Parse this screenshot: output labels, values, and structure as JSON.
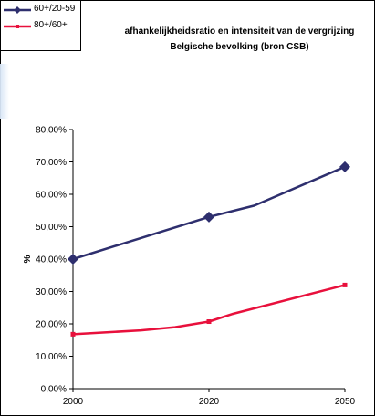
{
  "chart_data": {
    "type": "line",
    "title_lines": [
      "afhankelijkheidsratio en intensiteit van de vergrijzing",
      "Belgische bevolking (bron CSB)"
    ],
    "xlabel": "",
    "ylabel": "%",
    "x_tick_labels": [
      "2000",
      "2020",
      "2050"
    ],
    "y_tick_labels": [
      "0,00%",
      "10,00%",
      "20,00%",
      "30,00%",
      "40,00%",
      "50,00%",
      "60,00%",
      "70,00%",
      "80,00%"
    ],
    "ylim": [
      0,
      0.8
    ],
    "grid": false,
    "legend_position": "top-left",
    "series": [
      {
        "name": "60+/20-59",
        "color": "#2e2f6e",
        "marker": "diamond",
        "x": [
          2000,
          2010,
          2020,
          2030,
          2050
        ],
        "values": [
          0.4,
          0.465,
          0.53,
          0.565,
          0.685
        ],
        "marker_x": [
          2000,
          2020,
          2050
        ]
      },
      {
        "name": "80+/60+",
        "color": "#e8103c",
        "marker": "square",
        "x": [
          2000,
          2010,
          2015,
          2020,
          2025,
          2050
        ],
        "values": [
          0.168,
          0.18,
          0.19,
          0.207,
          0.23,
          0.32
        ],
        "marker_x": [
          2000,
          2020,
          2050
        ]
      }
    ]
  }
}
